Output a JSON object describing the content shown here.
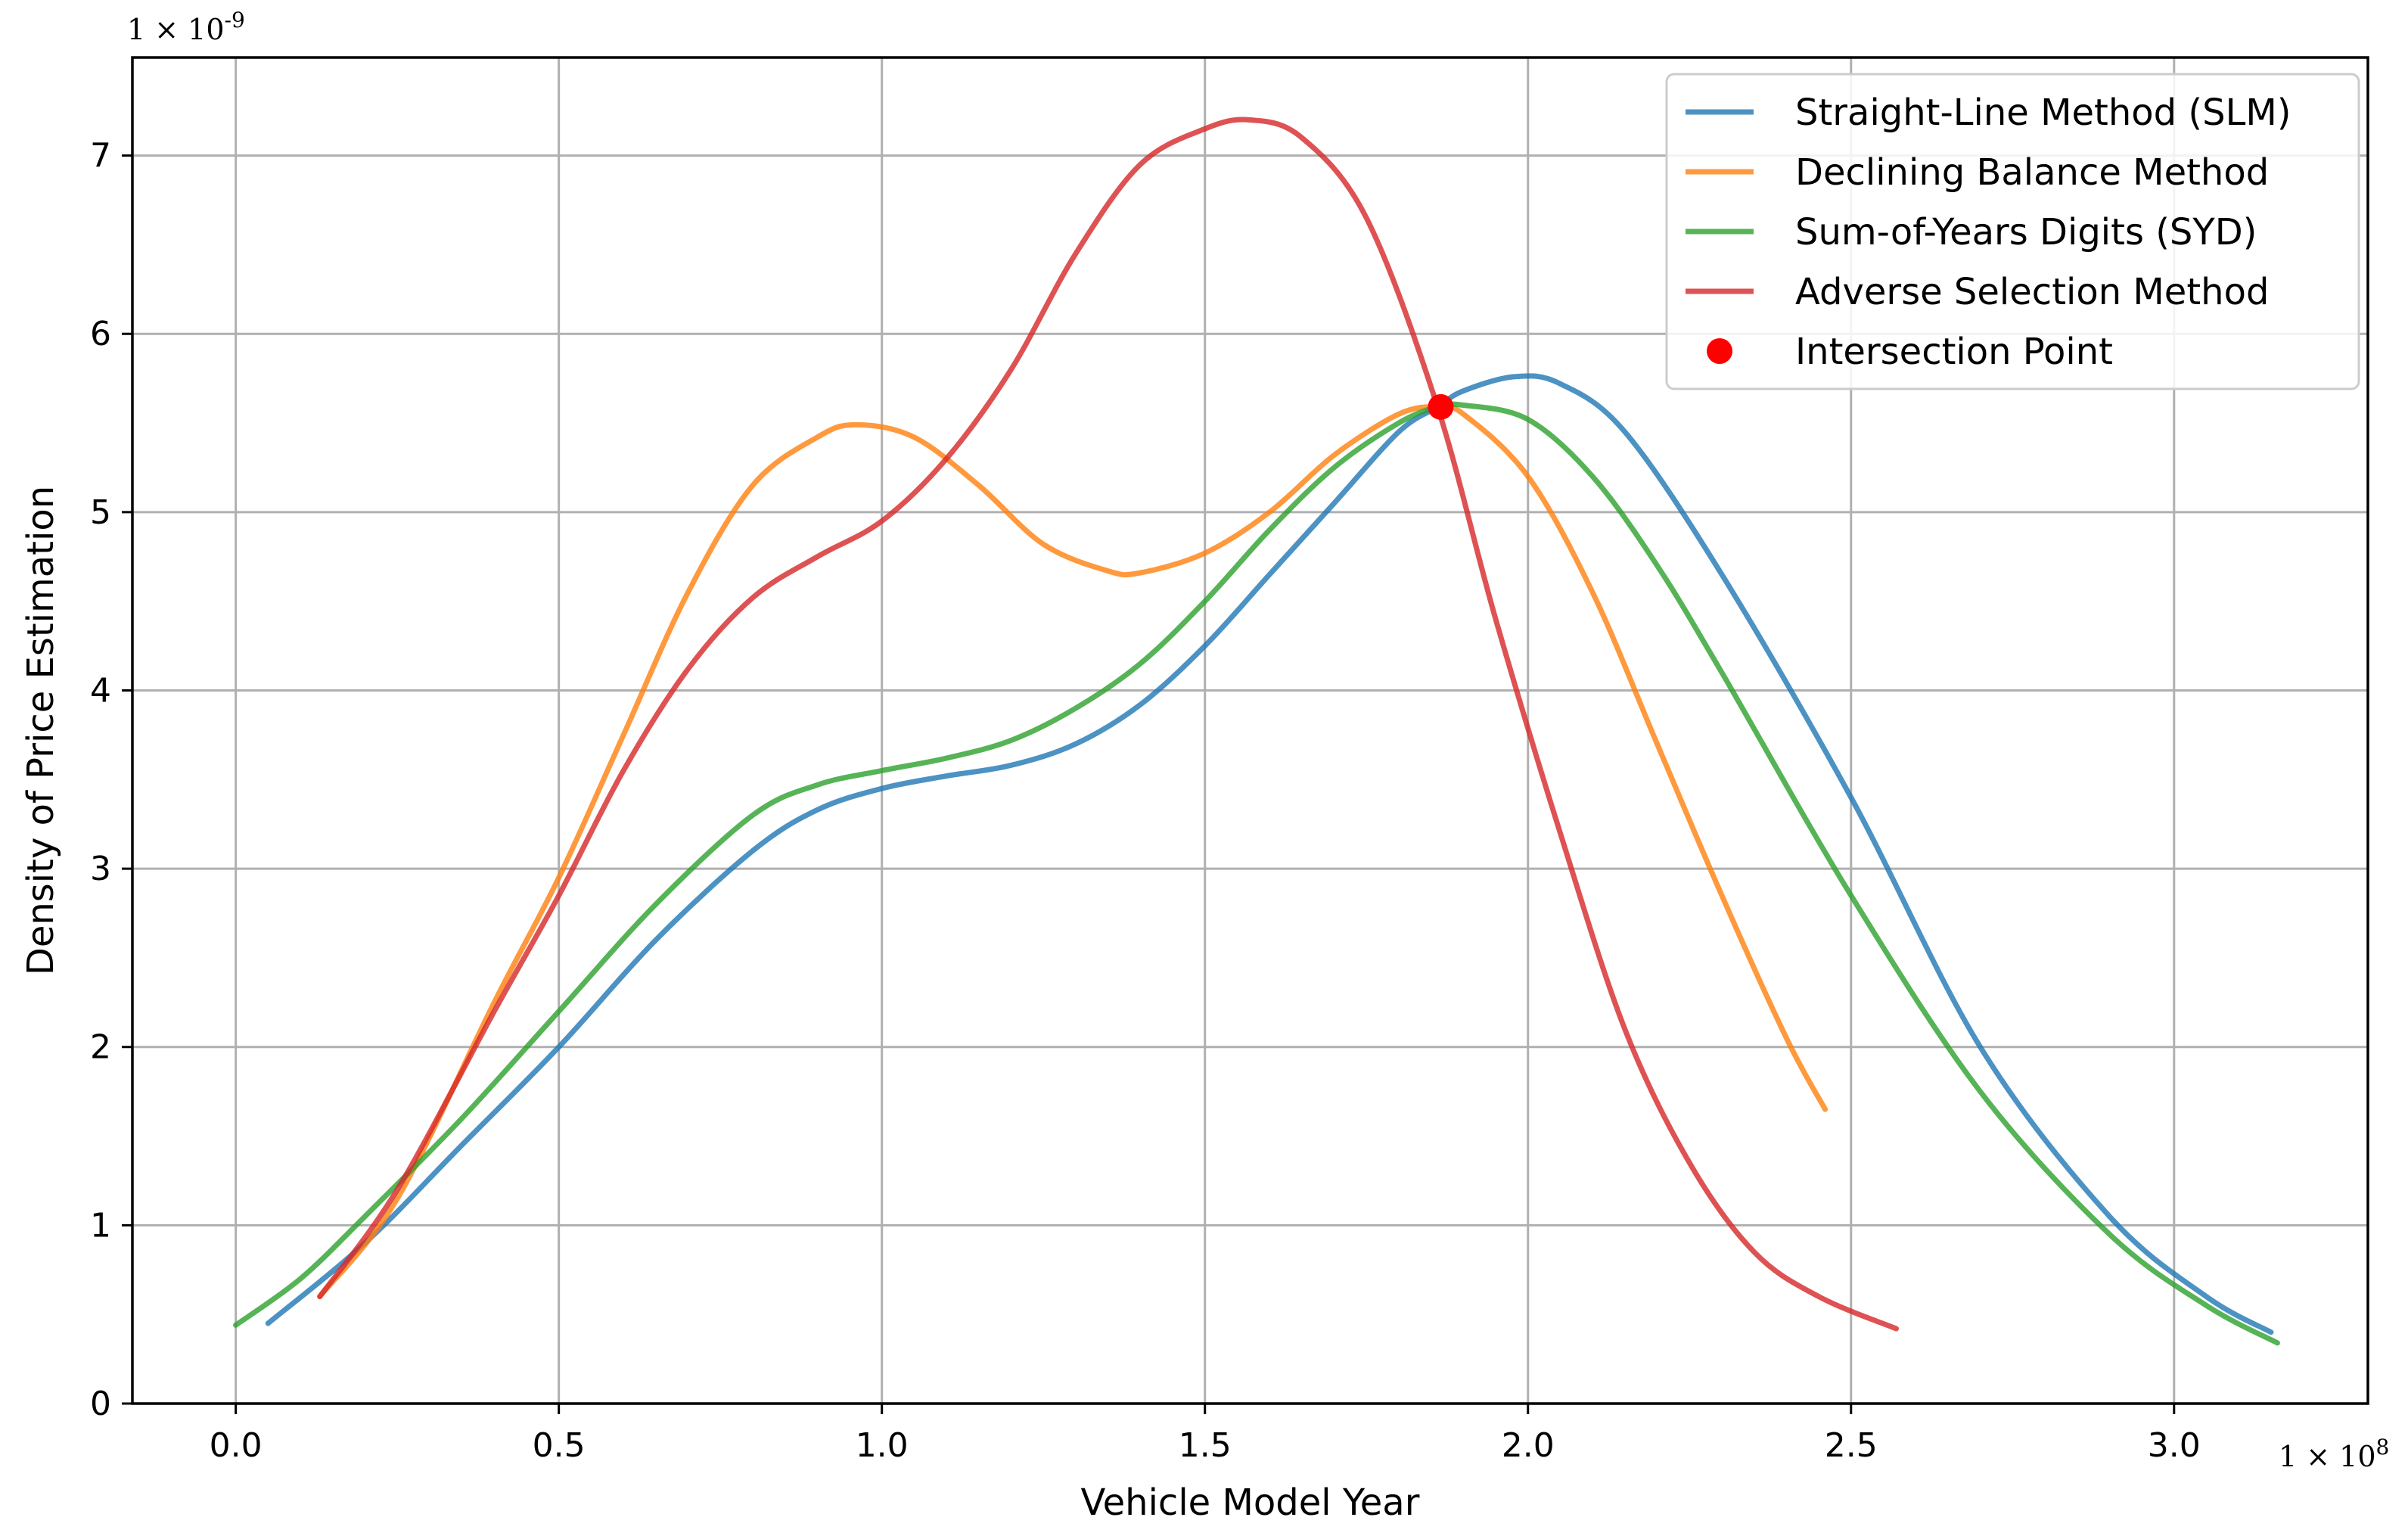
{
  "chart_data": {
    "type": "line",
    "title": "",
    "xlabel": "Vehicle Model Year",
    "ylabel": "Density of Price Estimation",
    "x_multiplier_label": "1 × 10",
    "x_multiplier_exp": "8",
    "y_multiplier_label": "1 × 10",
    "y_multiplier_exp": "-9",
    "xlim": [
      -0.16,
      3.3
    ],
    "ylim": [
      0,
      7.55
    ],
    "x_ticks": [
      0.0,
      0.5,
      1.0,
      1.5,
      2.0,
      2.5,
      3.0
    ],
    "x_tick_labels": [
      "0.0",
      "0.5",
      "1.0",
      "1.5",
      "2.0",
      "2.5",
      "3.0"
    ],
    "y_ticks": [
      0,
      1,
      2,
      3,
      4,
      5,
      6,
      7
    ],
    "y_tick_labels": [
      "0",
      "1",
      "2",
      "3",
      "4",
      "5",
      "6",
      "7"
    ],
    "grid": true,
    "legend_position": "top-right",
    "series": [
      {
        "name": "Straight-Line Method (SLM)",
        "color": "#1f77b4",
        "x": [
          0.05,
          0.2,
          0.35,
          0.5,
          0.65,
          0.8,
          0.9,
          1.0,
          1.1,
          1.2,
          1.3,
          1.4,
          1.5,
          1.6,
          1.7,
          1.8,
          1.86,
          1.9,
          1.98,
          2.05,
          2.15,
          2.3,
          2.5,
          2.7,
          2.9,
          3.05,
          3.15
        ],
        "y": [
          0.45,
          0.9,
          1.45,
          2.0,
          2.6,
          3.1,
          3.33,
          3.45,
          3.52,
          3.58,
          3.7,
          3.92,
          4.25,
          4.65,
          5.05,
          5.45,
          5.59,
          5.68,
          5.76,
          5.72,
          5.45,
          4.65,
          3.4,
          2.0,
          1.05,
          0.6,
          0.4
        ]
      },
      {
        "name": "Declining Balance Method",
        "color": "#ff7f0e",
        "x": [
          0.13,
          0.25,
          0.4,
          0.5,
          0.6,
          0.7,
          0.8,
          0.9,
          0.96,
          1.05,
          1.15,
          1.25,
          1.35,
          1.4,
          1.5,
          1.6,
          1.7,
          1.8,
          1.86,
          1.9,
          2.0,
          2.1,
          2.2,
          2.3,
          2.4,
          2.46
        ],
        "y": [
          0.6,
          1.15,
          2.25,
          2.95,
          3.75,
          4.55,
          5.15,
          5.42,
          5.49,
          5.42,
          5.15,
          4.82,
          4.67,
          4.66,
          4.77,
          5.0,
          5.32,
          5.55,
          5.59,
          5.55,
          5.2,
          4.55,
          3.7,
          2.85,
          2.05,
          1.65
        ]
      },
      {
        "name": "Sum-of-Years Digits (SYD)",
        "color": "#2ca02c",
        "x": [
          0.0,
          0.1,
          0.2,
          0.35,
          0.5,
          0.65,
          0.8,
          0.9,
          1.0,
          1.1,
          1.2,
          1.3,
          1.4,
          1.5,
          1.6,
          1.7,
          1.8,
          1.86,
          1.9,
          2.0,
          2.1,
          2.2,
          2.3,
          2.5,
          2.7,
          2.9,
          3.05,
          3.16
        ],
        "y": [
          0.44,
          0.7,
          1.05,
          1.6,
          2.2,
          2.8,
          3.3,
          3.47,
          3.55,
          3.62,
          3.72,
          3.9,
          4.15,
          4.5,
          4.9,
          5.25,
          5.5,
          5.59,
          5.6,
          5.52,
          5.2,
          4.7,
          4.1,
          2.85,
          1.75,
          0.95,
          0.55,
          0.34
        ]
      },
      {
        "name": "Adverse Selection Method",
        "color": "#d62728",
        "x": [
          0.13,
          0.25,
          0.4,
          0.5,
          0.6,
          0.7,
          0.8,
          0.9,
          1.0,
          1.1,
          1.2,
          1.3,
          1.4,
          1.5,
          1.57,
          1.65,
          1.75,
          1.86,
          1.95,
          2.05,
          2.15,
          2.25,
          2.35,
          2.45,
          2.57
        ],
        "y": [
          0.6,
          1.2,
          2.2,
          2.85,
          3.55,
          4.12,
          4.52,
          4.75,
          4.95,
          5.3,
          5.8,
          6.45,
          6.95,
          7.15,
          7.2,
          7.1,
          6.65,
          5.59,
          4.4,
          3.2,
          2.1,
          1.35,
          0.85,
          0.6,
          0.42
        ]
      }
    ],
    "intersection_point": {
      "name": "Intersection Point",
      "color": "#ff0000",
      "x": 1.865,
      "y": 5.59
    }
  }
}
